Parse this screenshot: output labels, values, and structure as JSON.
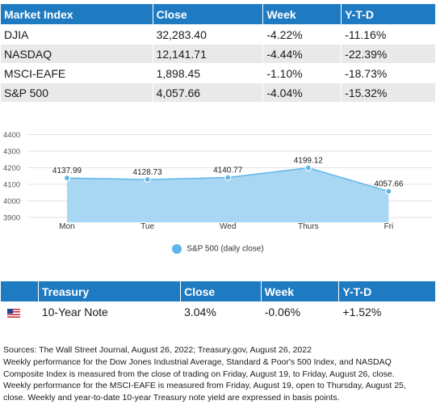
{
  "market_table": {
    "headers": [
      "Market Index",
      "Close",
      "Week",
      "Y-T-D"
    ],
    "rows": [
      [
        "DJIA",
        "32,283.40",
        "-4.22%",
        "-11.16%"
      ],
      [
        "NASDAQ",
        "12,141.71",
        "-4.44%",
        "-22.39%"
      ],
      [
        "MSCI-EAFE",
        "1,898.45",
        "-1.10%",
        "-18.73%"
      ],
      [
        "S&P 500",
        "4,057.66",
        "-4.04%",
        "-15.32%"
      ]
    ]
  },
  "chart_data": {
    "type": "area",
    "categories": [
      "Mon",
      "Tue",
      "Wed",
      "Thurs",
      "Fri"
    ],
    "series": [
      {
        "name": "S&P 500 (daily close)",
        "values": [
          4137.99,
          4128.73,
          4140.77,
          4199.12,
          4057.66
        ]
      }
    ],
    "data_labels": [
      "4137.99",
      "4128.73",
      "4140.77",
      "4199.12",
      "4057.66"
    ],
    "yticks": [
      3900,
      4000,
      4100,
      4200,
      4300,
      4400
    ],
    "ylim": [
      3870,
      4400
    ],
    "grid": true,
    "legend_position": "bottom",
    "colors": {
      "fill": "#a9d6f2",
      "line": "#5db7ea",
      "point": "#5db7ea"
    }
  },
  "treasury_table": {
    "headers": [
      "Treasury",
      "Close",
      "Week",
      "Y-T-D"
    ],
    "rows": [
      {
        "flag_icon": "us-flag-icon",
        "name": "10-Year Note",
        "close": "3.04%",
        "week": "-0.06%",
        "ytd": "+1.52%"
      }
    ]
  },
  "notes": [
    "Sources: The Wall Street Journal, August 26, 2022; Treasury.gov, August 26, 2022",
    "Weekly performance for the Dow Jones Industrial Average, Standard & Poor's 500 Index, and NASDAQ",
    "Composite Index is measured from the close of trading on Friday, August 19, to Friday, August 26, close.",
    "Weekly performance for the MSCI-EAFE is measured from Friday, August 19, open to Thursday, August 25,",
    "close. Weekly and year-to-date 10-year Treasury note yield are expressed in basis points."
  ],
  "colors": {
    "header_bg": "#1f7bc1",
    "row_alt": "#e9e9e9"
  }
}
